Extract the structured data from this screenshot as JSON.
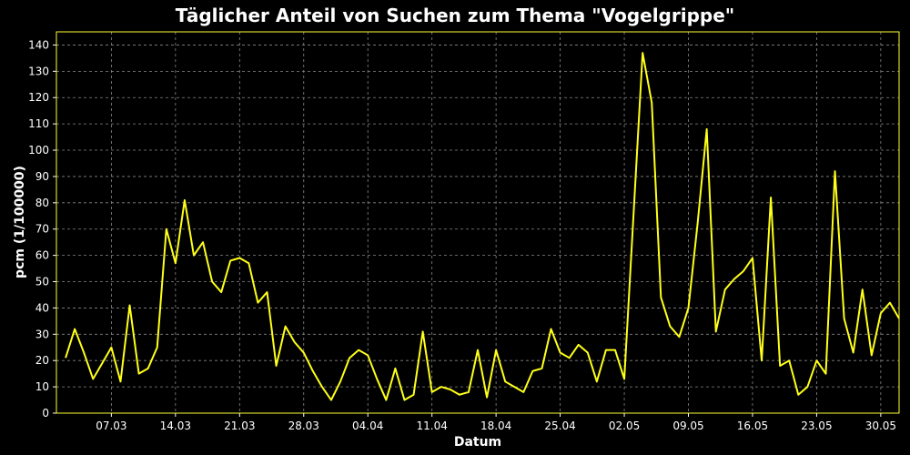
{
  "colors": {
    "background": "#000000",
    "series": "#ffff19",
    "frame": "#ffff33",
    "grid": "#888888",
    "text": "#ffffff"
  },
  "chart_data": {
    "type": "line",
    "title": "Täglicher Anteil von Suchen zum Thema \"Vogelgrippe\"",
    "xlabel": "Datum",
    "ylabel": "pcm (1/100000)",
    "ylim": [
      0,
      145
    ],
    "yticks": [
      0,
      10,
      20,
      30,
      40,
      50,
      60,
      70,
      80,
      90,
      100,
      110,
      120,
      130,
      140
    ],
    "xlim": [
      "2006-03-01",
      "2006-06-01"
    ],
    "xtick_labels": [
      "07.03",
      "14.03",
      "21.03",
      "28.03",
      "04.04",
      "11.04",
      "18.04",
      "25.04",
      "02.05",
      "09.05",
      "16.05",
      "23.05",
      "30.05"
    ],
    "xtick_dates": [
      "2006-03-07",
      "2006-03-14",
      "2006-03-21",
      "2006-03-28",
      "2006-04-04",
      "2006-04-11",
      "2006-04-18",
      "2006-04-25",
      "2006-05-02",
      "2006-05-09",
      "2006-05-16",
      "2006-05-23",
      "2006-05-30"
    ],
    "grid": true,
    "legend": "none",
    "series": [
      {
        "start_date": "2006-03-02",
        "step": "1 day",
        "values": [
          21,
          32,
          23,
          13,
          19,
          25,
          12,
          41,
          15,
          17,
          25,
          70,
          57,
          81,
          60,
          65,
          50,
          46,
          58,
          59,
          57,
          42,
          46,
          18,
          33,
          27,
          23,
          16,
          10,
          5,
          12,
          21,
          24,
          22,
          13,
          5,
          17,
          5,
          7,
          31,
          8,
          10,
          9,
          7,
          8,
          24,
          6,
          24,
          12,
          10,
          8,
          16,
          17,
          32,
          23,
          21,
          26,
          23,
          12,
          24,
          24,
          13,
          75,
          137,
          118,
          44,
          33,
          29,
          40,
          72,
          108,
          31,
          47,
          51,
          54,
          59,
          20,
          82,
          18,
          20,
          7,
          10,
          20,
          15,
          92,
          36,
          23,
          47,
          22,
          38,
          42,
          36
        ]
      }
    ]
  }
}
